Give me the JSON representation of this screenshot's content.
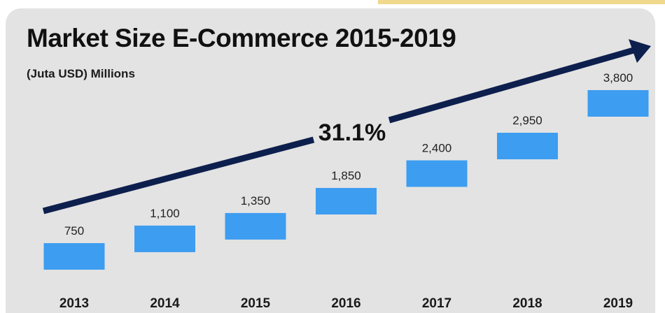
{
  "title": "Market Size E-Commerce 2015-2019",
  "subtitle": "(Juta USD) Millions",
  "growth_label": "31.1%",
  "colors": {
    "bar": "#3d9df0",
    "arrow": "#0d1f4d",
    "panel": "#e3e3e3",
    "accent": "#f0d98c"
  },
  "chart_data": {
    "type": "bar",
    "title": "Market Size E-Commerce 2015-2019",
    "subtitle": "(Juta USD) Millions",
    "categories": [
      "2013",
      "2014",
      "2015",
      "2016",
      "2017",
      "2018",
      "2019"
    ],
    "values": [
      750,
      1100,
      1350,
      1850,
      2400,
      2950,
      3800
    ],
    "value_labels": [
      "750",
      "1,100",
      "1,350",
      "1,850",
      "2,400",
      "2,950",
      "3,800"
    ],
    "annotation": "31.1%",
    "xlabel": "",
    "ylabel": "",
    "grid": false,
    "legend": "none"
  }
}
